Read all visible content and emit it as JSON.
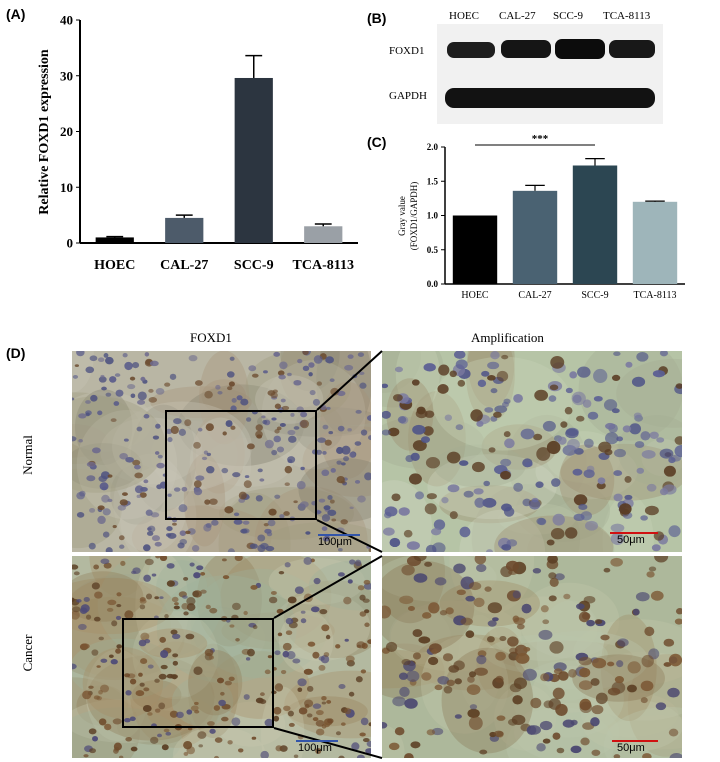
{
  "panels": {
    "a": "(A)",
    "b": "(B)",
    "c": "(C)",
    "d": "(D)"
  },
  "chart_data": [
    {
      "type": "bar",
      "ylabel": "Relative FOXD1 expression",
      "categories": [
        "HOEC",
        "CAL-27",
        "SCC-9",
        "TCA-8113"
      ],
      "values": [
        1.0,
        4.5,
        29.6,
        3.0
      ],
      "errors": [
        0.15,
        0.5,
        4.0,
        0.4
      ],
      "ylim": [
        0,
        40
      ],
      "yticks": [
        "0",
        "10",
        "20",
        "30",
        "40"
      ],
      "colors": [
        "#000000",
        "#4d5b6a",
        "#2c3540",
        "#9aa0a6"
      ]
    },
    {
      "type": "bar",
      "ylabel": "Gray value",
      "ylabel2": "(FOXD1/GAPDH)",
      "categories": [
        "HOEC",
        "CAL-27",
        "SCC-9",
        "TCA-8113"
      ],
      "values": [
        1.0,
        1.36,
        1.73,
        1.2
      ],
      "errors": [
        0.0,
        0.08,
        0.1,
        0.01
      ],
      "ylim": [
        0,
        2.0
      ],
      "yticks": [
        "0.0",
        "0.5",
        "1.0",
        "1.5",
        "2.0"
      ],
      "significance": "***",
      "colors": [
        "#000000",
        "#4a6272",
        "#2c4652",
        "#9eb5ba"
      ]
    }
  ],
  "blot": {
    "lanes": [
      "HOEC",
      "CAL-27",
      "SCC-9",
      "TCA-8113"
    ],
    "rows": [
      "FOXD1",
      "GAPDH"
    ]
  },
  "ihc": {
    "col_left": "FOXD1",
    "col_right": "Amplification",
    "row_top": "Normal",
    "row_bottom": "Cancer",
    "scale_low": "100μm",
    "scale_high": "50μm"
  }
}
